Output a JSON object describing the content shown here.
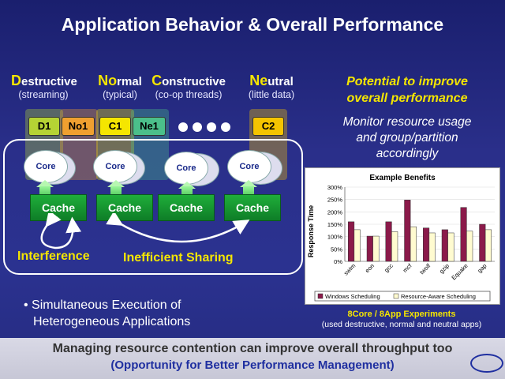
{
  "title": "Application Behavior & Overall Performance",
  "categories": [
    {
      "initial": "D",
      "rest": "estructive",
      "sub": "(streaming)"
    },
    {
      "initial": "No",
      "rest": "rmal",
      "sub": "(typical)"
    },
    {
      "initial": "C",
      "rest": "onstructive",
      "sub": "(co-op threads)"
    },
    {
      "initial": "Ne",
      "rest": "utral",
      "sub": "(little data)"
    }
  ],
  "apps": [
    {
      "label": "D1",
      "color": "#b5d334"
    },
    {
      "label": "No1",
      "color": "#f0a030"
    },
    {
      "label": "C1",
      "color": "#f5e600"
    },
    {
      "label": "Ne1",
      "color": "#4bbf8a"
    },
    {
      "label": "C2",
      "color": "#f5c400"
    }
  ],
  "cores": [
    "Core",
    "Core",
    "Core",
    "Core"
  ],
  "caches": [
    "Cache",
    "Cache",
    "Cache",
    "Cache"
  ],
  "interference": "Interference",
  "inefficient_sharing": "Inefficient Sharing",
  "bullet": {
    "line1": "Simultaneous Execution of",
    "line2": "Heterogeneous Applications"
  },
  "potential": {
    "line1": "Potential to improve",
    "line2": "overall performance"
  },
  "monitor": {
    "line1": "Monitor resource usage",
    "line2": "and group/partition",
    "line3": "accordingly"
  },
  "experiments": {
    "line1": "8Core / 8App Experiments",
    "line2": "(used destructive, normal and neutral apps)"
  },
  "footer": {
    "line1": "Managing resource contention can improve overall throughput too",
    "line2": "(Opportunity for Better Performance Management)"
  },
  "chart_data": {
    "type": "bar",
    "title": "Example Benefits",
    "ylabel": "Response Time",
    "xlabel": "",
    "ylim": [
      0,
      300
    ],
    "yticks": [
      "0%",
      "50%",
      "100%",
      "150%",
      "200%",
      "250%",
      "300%"
    ],
    "categories": [
      "swim",
      "eon",
      "gcc",
      "mcf",
      "twolf",
      "gzip",
      "Equake",
      "gap"
    ],
    "series": [
      {
        "name": "Windows Scheduling",
        "color": "#8b1a4a",
        "values": [
          160,
          102,
          160,
          248,
          135,
          128,
          218,
          150
        ]
      },
      {
        "name": "Resource-Aware Scheduling",
        "color": "#fffbd0",
        "values": [
          128,
          102,
          120,
          140,
          115,
          115,
          122,
          128
        ]
      }
    ]
  }
}
